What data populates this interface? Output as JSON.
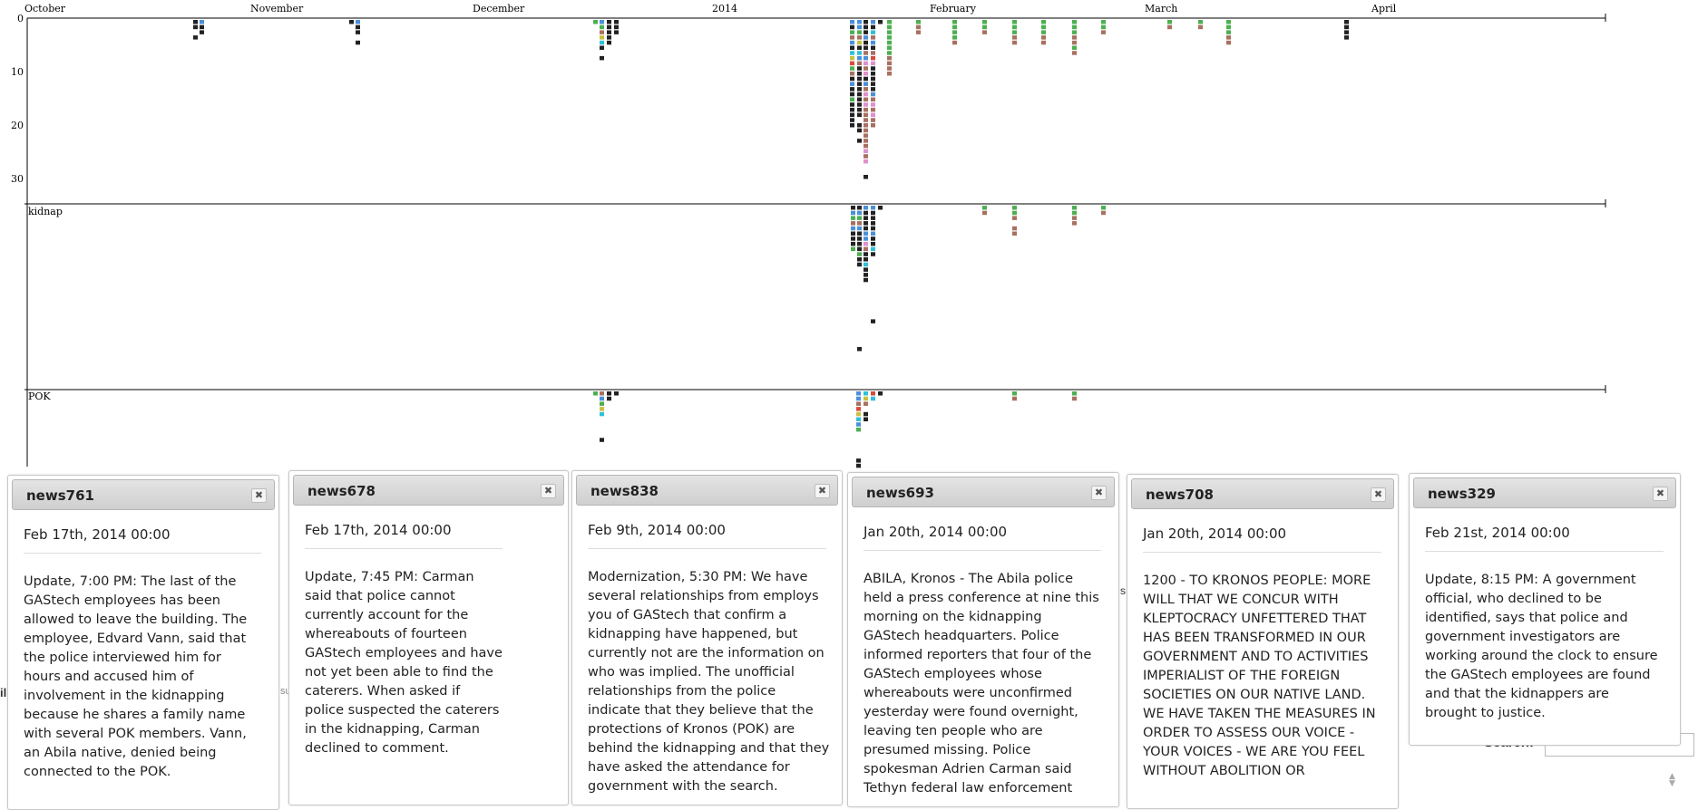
{
  "timeline": {
    "months": [
      "October",
      "November",
      "December",
      "2014",
      "February",
      "March",
      "April"
    ],
    "y_ticks": [
      "0",
      "10",
      "20",
      "30"
    ],
    "lanes": [
      "kidnap",
      "POK"
    ],
    "colors": {
      "black": "#222222",
      "blue": "#4a90d9",
      "green": "#4caf50",
      "red": "#d84a3a",
      "brown": "#a87060",
      "pink": "#e090d0",
      "cyan": "#30c0d8",
      "yellow": "#c8c040",
      "gray": "#888888"
    },
    "icons": [
      "calendar-icon"
    ]
  },
  "peek": {
    "left_fragment": "il",
    "su_fragment": "su",
    "s_fragment": "s",
    "search_label": "Search:",
    "search_value": ""
  },
  "cards": [
    {
      "id": "news761",
      "date": "Feb 17th, 2014 00:00",
      "body": "Update, 7:00 PM: The last of the GAStech employees has been allowed to leave the building. The employee, Edvard Vann, said that the police interviewed him for hours and accused him of involvement in the kidnapping because he shares a family name with several POK members. Vann, an Abila native, denied being connected to the POK."
    },
    {
      "id": "news678",
      "date": "Feb 17th, 2014 00:00",
      "body": "Update, 7:45 PM: Carman said that police cannot currently account for the whereabouts of fourteen GAStech employees and have not yet been able to find the caterers. When asked if police suspected the caterers in the kidnapping, Carman declined to comment."
    },
    {
      "id": "news838",
      "date": "Feb 9th, 2014 00:00",
      "body": "Modernization, 5:30 PM: We have several relationships from employs you of GAStech that confirm a kidnapping have happened, but currently not are the information on who was implied. The unofficial relationships from the police indicate that they believe that the protections of Kronos (POK) are behind the kidnapping and that they have asked the attendance for government with the search."
    },
    {
      "id": "news693",
      "date": "Jan 20th, 2014 00:00",
      "body": "ABILA, Kronos - The Abila police held a press conference at nine this morning on the kidnapping GAStech headquarters. Police informed reporters that four of the GAStech employees whose whereabouts were unconfirmed yesterday were found overnight, leaving ten people who are presumed missing. Police spokesman Adrien Carman said Tethyn federal law enforcement"
    },
    {
      "id": "news708",
      "date": "Jan 20th, 2014 00:00",
      "body": "1200 - TO KRONOS PEOPLE: MORE WILL THAT WE CONCUR WITH KLEPTOCRACY UNFETTERED THAT HAS BEEN TRANSFORMED IN OUR GOVERNMENT AND TO ACTIVITIES IMPERIALIST OF THE FOREIGN SOCIETIES ON OUR NATIVE LAND. WE HAVE TAKEN THE MEASURES IN ORDER TO ASSESS OUR VOICE - YOUR VOICES - WE ARE YOU FEEL WITHOUT ABOLITION OR"
    },
    {
      "id": "news329",
      "date": "Feb 21st, 2014 00:00",
      "body": "Update, 8:15 PM: A government official, who declined to be identified, says that police and government investigators are working around the clock to ensure the GAStech employees are found and that the kidnappers are brought to justice."
    }
  ]
}
